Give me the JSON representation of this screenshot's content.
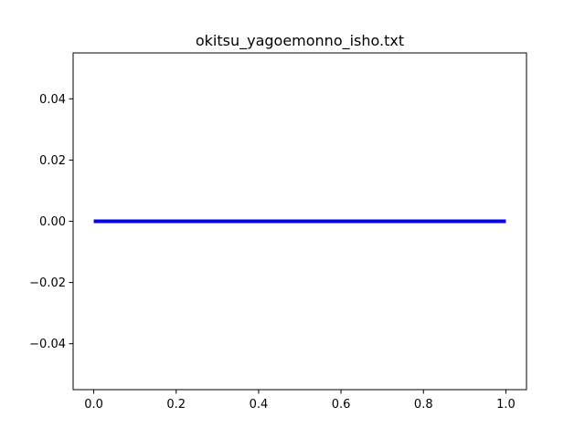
{
  "chart_data": {
    "type": "line",
    "title": "okitsu_yagoemonno_isho.txt",
    "xlabel": "",
    "ylabel": "",
    "xlim": [
      -0.05,
      1.05
    ],
    "ylim": [
      -0.055,
      0.055
    ],
    "x_ticks": [
      0.0,
      0.2,
      0.4,
      0.6,
      0.8,
      1.0
    ],
    "x_tick_labels": [
      "0.0",
      "0.2",
      "0.4",
      "0.6",
      "0.8",
      "1.0"
    ],
    "y_ticks": [
      -0.04,
      -0.02,
      0.0,
      0.02,
      0.04
    ],
    "y_tick_labels": [
      "−0.04",
      "−0.02",
      "0.00",
      "0.02",
      "0.04"
    ],
    "grid": false,
    "series": [
      {
        "x": [
          0.0,
          1.0
        ],
        "y": [
          0.0,
          0.0
        ],
        "color": "#0000ff"
      }
    ]
  }
}
